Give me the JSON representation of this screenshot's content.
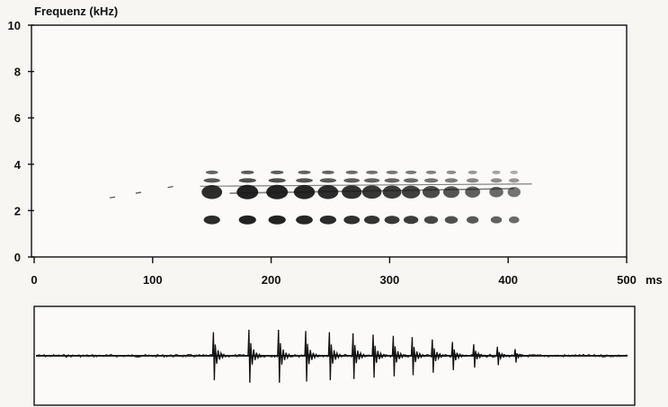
{
  "chart_data": [
    {
      "type": "heatmap",
      "title": "",
      "ylabel": "Frequenz (kHz)",
      "xlabel": "",
      "x_unit": "ms",
      "xlim": [
        0,
        500
      ],
      "ylim": [
        0,
        10
      ],
      "x_ticks": [
        "0",
        "100",
        "200",
        "300",
        "400",
        "500"
      ],
      "y_ticks": [
        "0",
        "2",
        "4",
        "6",
        "8",
        "10"
      ],
      "grid": false,
      "pulse_times_ms": [
        150,
        180,
        205,
        228,
        248,
        268,
        285,
        302,
        318,
        335,
        352,
        370,
        390,
        405
      ],
      "faint_onset_times_ms": [
        66,
        88,
        115
      ],
      "harmonic_bands_khz": [
        1.6,
        2.8,
        3.3,
        3.6
      ],
      "colors": {
        "ink": "#161616",
        "background": "#f7f6f3"
      }
    },
    {
      "type": "line",
      "title": "",
      "xlabel": "",
      "ylabel": "",
      "xlim": [
        0,
        500
      ],
      "pulse_times_ms": [
        150,
        180,
        205,
        228,
        248,
        268,
        285,
        302,
        318,
        335,
        352,
        370,
        390,
        405
      ],
      "pulse_peak_amplitudes": [
        0.9,
        1.0,
        1.0,
        0.95,
        0.9,
        0.85,
        0.8,
        0.75,
        0.7,
        0.6,
        0.5,
        0.4,
        0.3,
        0.2
      ]
    }
  ]
}
